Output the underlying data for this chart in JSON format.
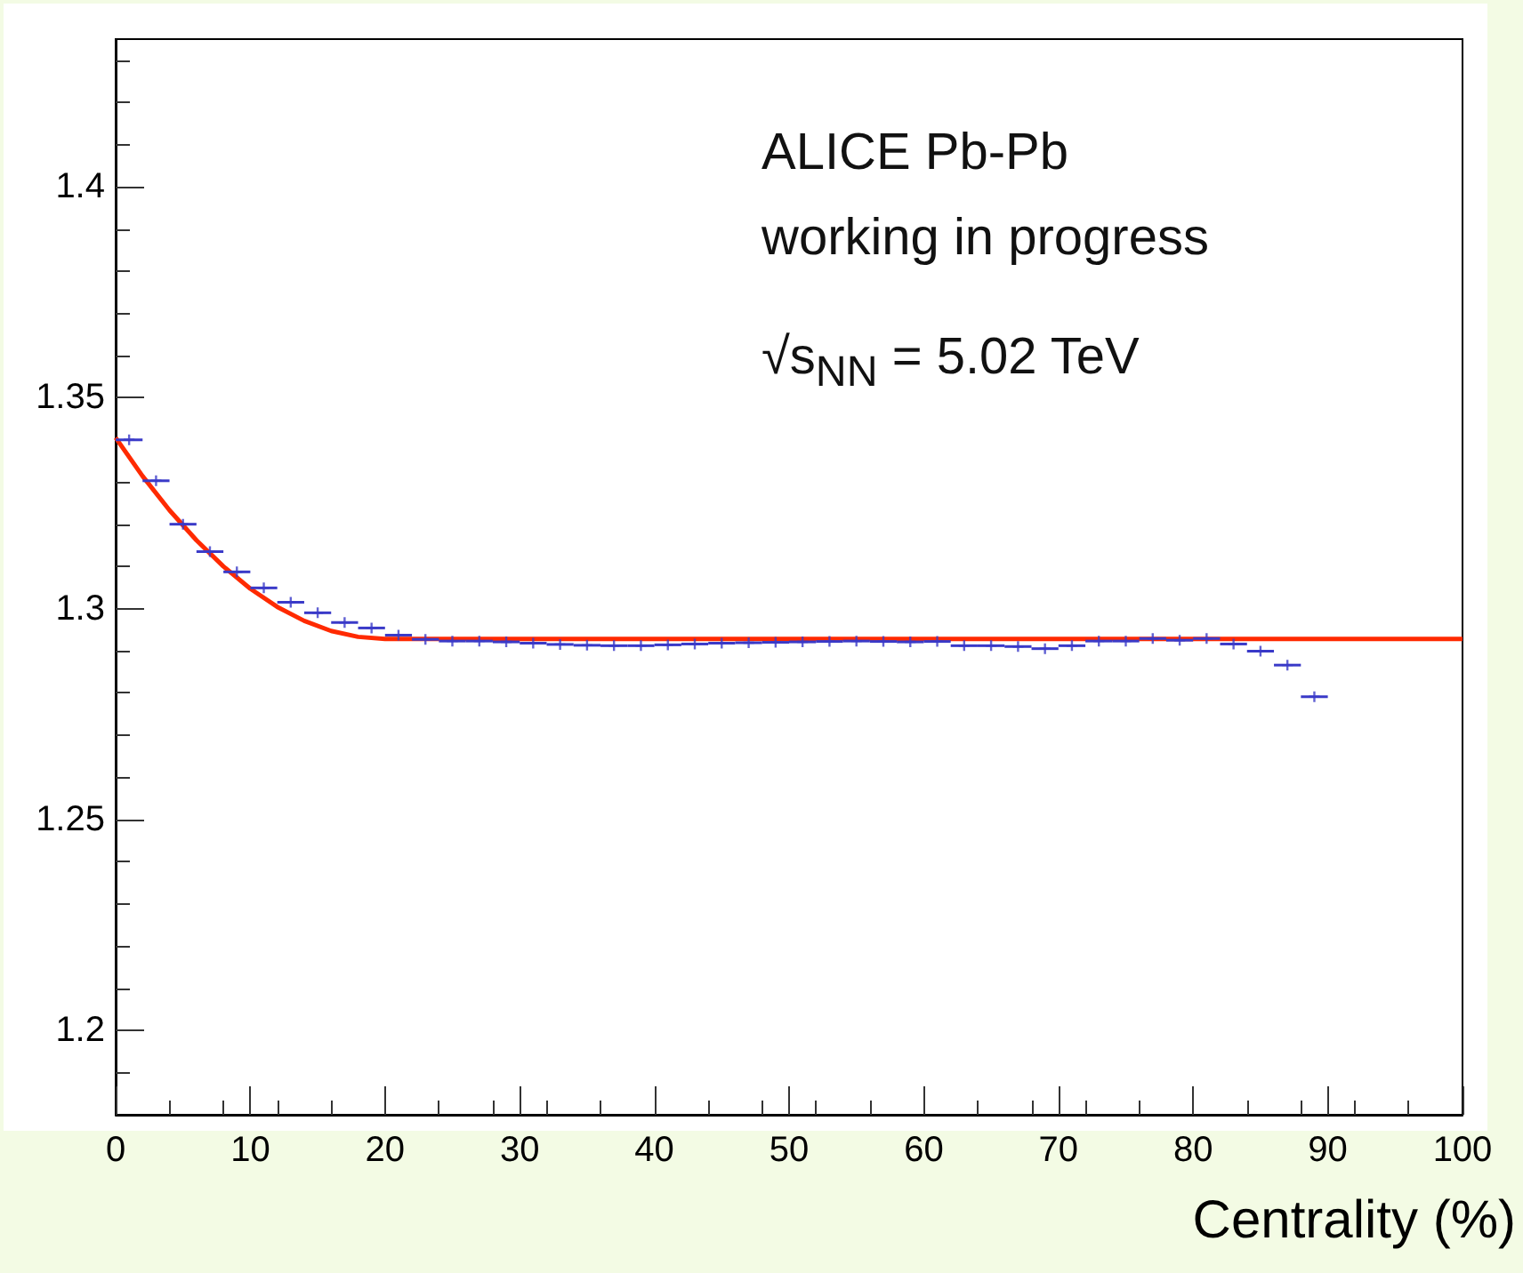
{
  "chart_data": {
    "type": "scatter",
    "xlabel": "Centrality (%)",
    "annotations": [
      "ALICE Pb-Pb",
      "working in progress",
      "√s$_{NN}$ = 5.02 TeV"
    ],
    "xlim": [
      0,
      100
    ],
    "xticks": [
      0,
      10,
      20,
      30,
      40,
      50,
      60,
      70,
      80,
      90,
      100
    ],
    "ylim": [
      1.18,
      1.435
    ],
    "yticks": [
      1.2,
      1.25,
      1.3,
      1.35,
      1.4
    ],
    "grid": false,
    "series": [
      {
        "color": "#3a3ac8",
        "marker": "cross",
        "x": [
          1,
          3,
          5,
          7,
          9,
          11,
          13,
          15,
          17,
          19,
          21,
          23,
          25,
          27,
          29,
          31,
          33,
          35,
          37,
          39,
          41,
          43,
          45,
          47,
          49,
          51,
          53,
          55,
          57,
          59,
          61,
          63,
          65,
          67,
          69,
          71,
          73,
          75,
          77,
          79,
          81,
          83,
          85,
          87,
          89
        ],
        "values": [
          1.34,
          1.3303,
          1.32,
          1.3135,
          1.3087,
          1.3049,
          1.3015,
          1.299,
          1.2967,
          1.2954,
          1.2937,
          1.2927,
          1.2923,
          1.2923,
          1.2921,
          1.2918,
          1.2915,
          1.2913,
          1.2912,
          1.2912,
          1.2914,
          1.2916,
          1.2918,
          1.2919,
          1.292,
          1.2921,
          1.2922,
          1.2923,
          1.2922,
          1.2921,
          1.2922,
          1.2912,
          1.2912,
          1.291,
          1.2905,
          1.2912,
          1.2923,
          1.2923,
          1.2929,
          1.2925,
          1.2929,
          1.2916,
          1.2899,
          1.2866,
          1.2791
        ],
        "xerrors": [
          1,
          1,
          1,
          1,
          1,
          1,
          1,
          1,
          1,
          1,
          1,
          1,
          1,
          1,
          1,
          1,
          1,
          1,
          1,
          1,
          1,
          1,
          1,
          1,
          1,
          1,
          1,
          1,
          1,
          1,
          1,
          1,
          1,
          1,
          1,
          1,
          1,
          1,
          1,
          1,
          1,
          1,
          1,
          1,
          1
        ]
      },
      {
        "type": "line",
        "color": "#ff2a00",
        "marker": "none",
        "line_style": "solid",
        "x": [
          0,
          2,
          4,
          6,
          8,
          10,
          12,
          14,
          16,
          18,
          20,
          100
        ],
        "values": [
          1.3405,
          1.3314,
          1.3233,
          1.3162,
          1.31,
          1.3047,
          1.3004,
          1.2971,
          1.2947,
          1.2933,
          1.2928,
          1.2928
        ]
      }
    ]
  }
}
